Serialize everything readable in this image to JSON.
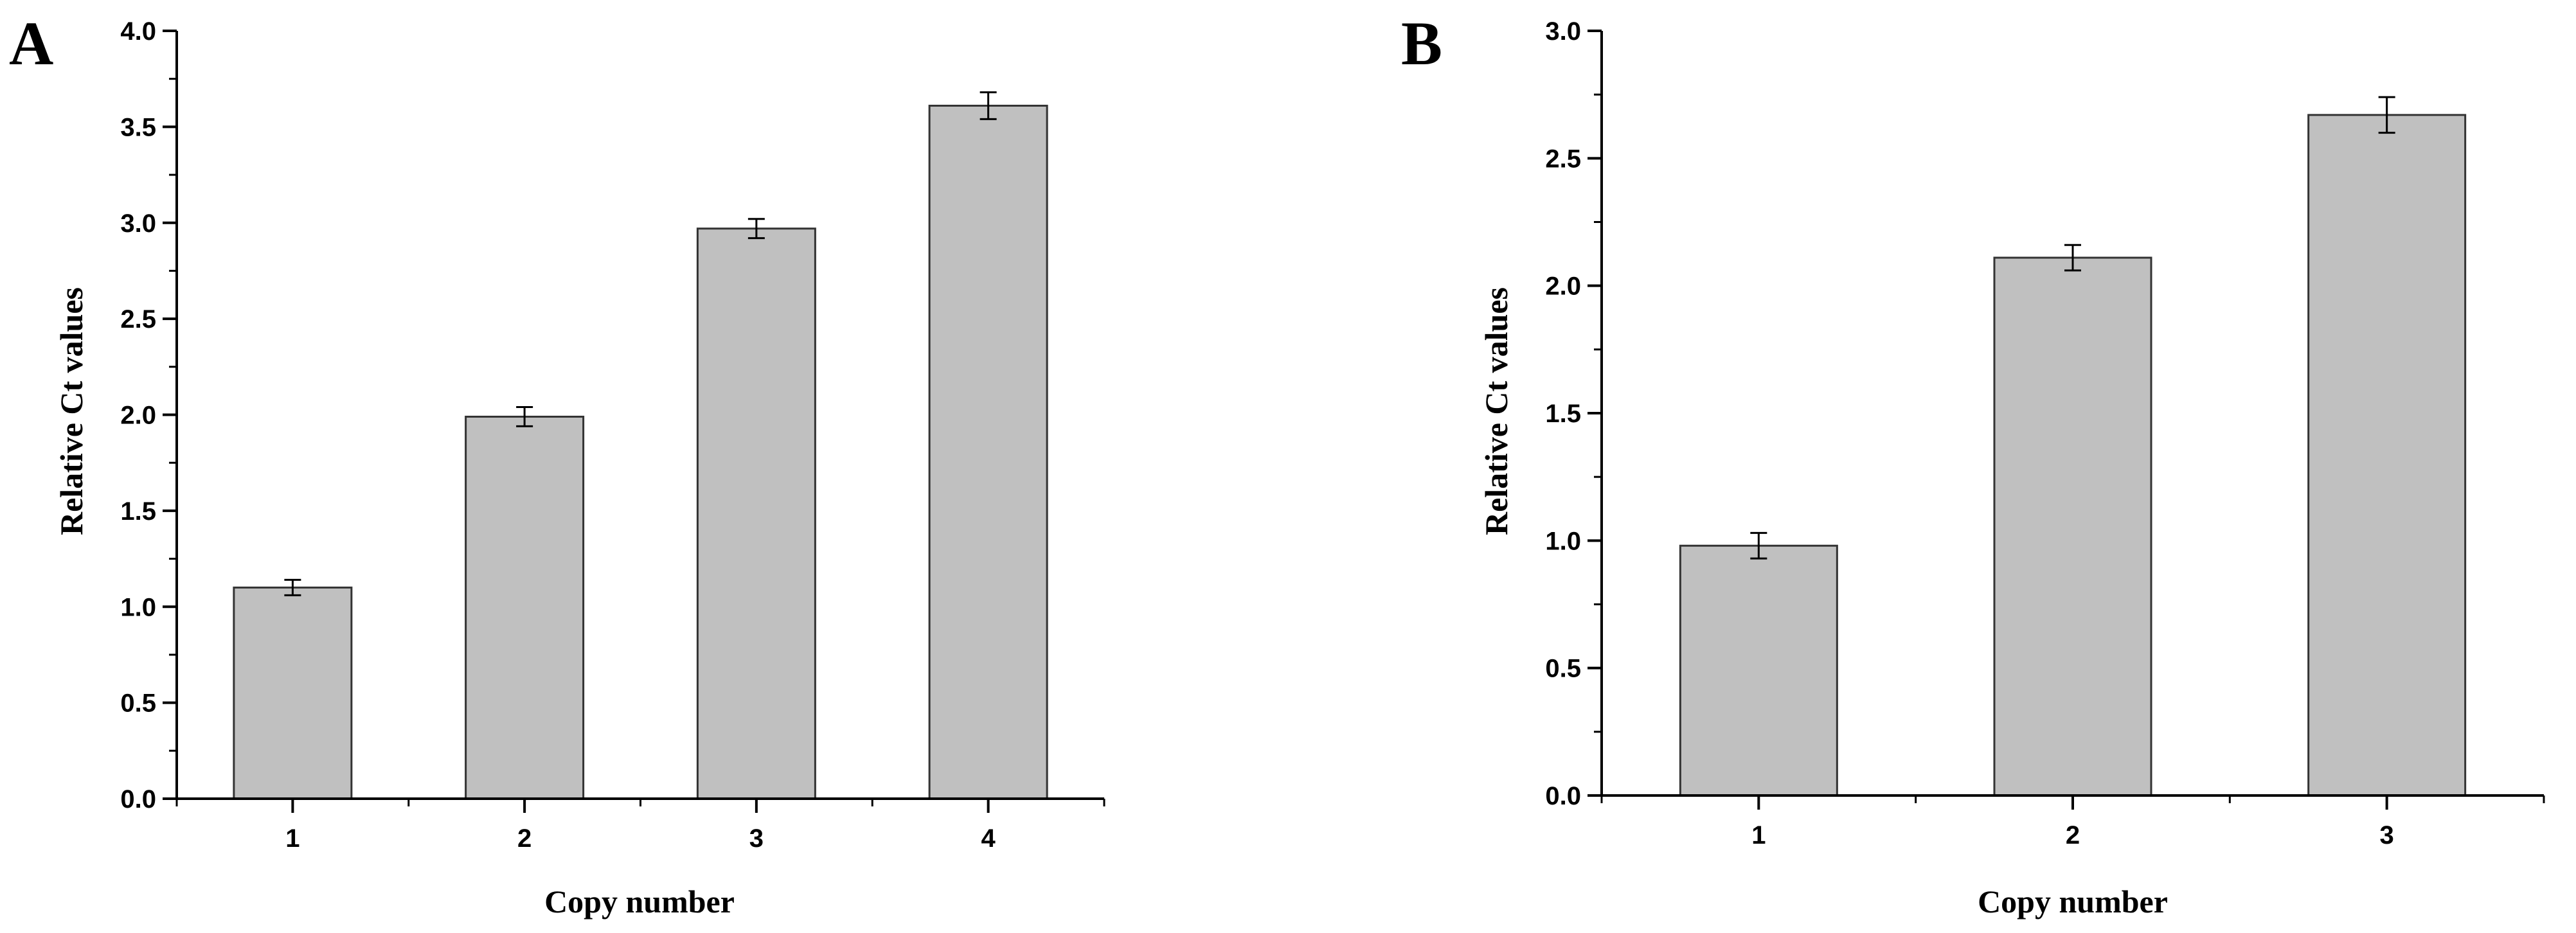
{
  "chart_data": [
    {
      "panel": "A",
      "type": "bar",
      "title": "",
      "xlabel": "Copy number",
      "ylabel": "Relative Ct values",
      "categories": [
        "1",
        "2",
        "3",
        "4"
      ],
      "values": [
        1.1,
        1.99,
        2.97,
        3.61
      ],
      "errors": [
        0.04,
        0.05,
        0.05,
        0.07
      ],
      "ylim": [
        0,
        4.0
      ],
      "yticks": [
        "0.0",
        "0.5",
        "1.0",
        "1.5",
        "2.0",
        "2.5",
        "3.0",
        "3.5",
        "4.0"
      ],
      "grid": false,
      "bar_color": "#c0c0c0"
    },
    {
      "panel": "B",
      "type": "bar",
      "title": "",
      "xlabel": "Copy number",
      "ylabel": "Relative Ct values",
      "categories": [
        "1",
        "2",
        "3"
      ],
      "values": [
        0.98,
        2.11,
        2.67
      ],
      "errors": [
        0.05,
        0.05,
        0.07
      ],
      "ylim": [
        0,
        3.0
      ],
      "yticks": [
        "0.0",
        "0.5",
        "1.0",
        "1.5",
        "2.0",
        "2.5",
        "3.0"
      ],
      "grid": false,
      "bar_color": "#c0c0c0"
    }
  ]
}
